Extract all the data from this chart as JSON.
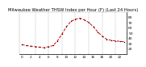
{
  "title": "Milwaukee Weather THSW Index per Hour (F) (Last 24 Hours)",
  "hours": [
    0,
    1,
    2,
    3,
    4,
    5,
    6,
    7,
    8,
    9,
    10,
    11,
    12,
    13,
    14,
    15,
    16,
    17,
    18,
    19,
    20,
    21,
    22,
    23
  ],
  "values": [
    28,
    26,
    25,
    24,
    23,
    22,
    24,
    26,
    35,
    48,
    62,
    72,
    76,
    78,
    75,
    70,
    62,
    52,
    44,
    38,
    36,
    35,
    34,
    33
  ],
  "line_color": "#dd0000",
  "marker_color": "#000000",
  "bg_color": "#ffffff",
  "plot_bg": "#ffffff",
  "grid_color": "#888888",
  "ylim": [
    10,
    90
  ],
  "yticks": [
    20,
    30,
    40,
    50,
    60,
    70,
    80
  ],
  "ytick_labels": [
    "20",
    "30",
    "40",
    "50",
    "60",
    "70",
    "80"
  ],
  "ylabel_fontsize": 3.2,
  "xlabel_fontsize": 3.0,
  "title_fontsize": 3.8,
  "axis_color": "#000000",
  "grid_hours": [
    3,
    6,
    9,
    12,
    15,
    18,
    21
  ]
}
